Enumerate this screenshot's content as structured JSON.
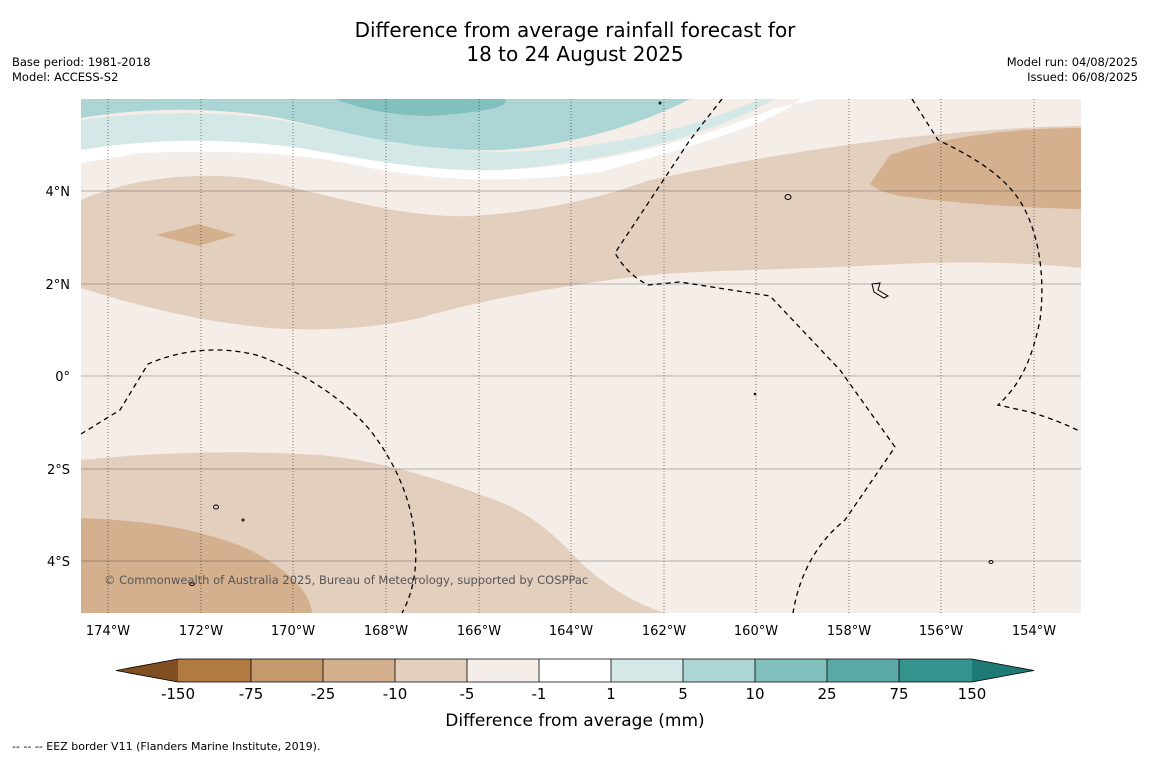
{
  "title": {
    "line1": "Difference from average rainfall forecast for",
    "line2": "18 to 24 August 2025"
  },
  "meta_left": {
    "base_period": "Base period: 1981-2018",
    "model": "Model: ACCESS-S2"
  },
  "meta_right": {
    "model_run": "Model run: 04/08/2025",
    "issued": "Issued: 06/08/2025"
  },
  "map": {
    "lat_labels": [
      "4°N",
      "2°N",
      "0°",
      "2°S",
      "4°S"
    ],
    "lon_labels": [
      "174°W",
      "172°W",
      "170°W",
      "168°W",
      "166°W",
      "164°W",
      "162°W",
      "160°W",
      "158°W",
      "156°W",
      "154°W"
    ],
    "copyright": "© Commonwealth of Australia 2025, Bureau of Meteorology, supported by COSPPac",
    "eez_border": "dashed",
    "gridlines": true
  },
  "colorbar": {
    "ticks": [
      "-150",
      "-75",
      "-25",
      "-10",
      "-5",
      "-1",
      "1",
      "5",
      "10",
      "25",
      "75",
      "150"
    ],
    "colors": [
      "#7f4f22",
      "#b07a40",
      "#c49a6c",
      "#d4b08e",
      "#e3cfbe",
      "#f4ede8",
      "#ffffff",
      "#d5e8e8",
      "#acd6d6",
      "#82c0bd",
      "#5aa9a7",
      "#35938e",
      "#1e7a74"
    ],
    "label": "Difference from average (mm)"
  },
  "footnote": "--  --  -- EEZ border V11 (Flanders Marine Institute, 2019)."
}
